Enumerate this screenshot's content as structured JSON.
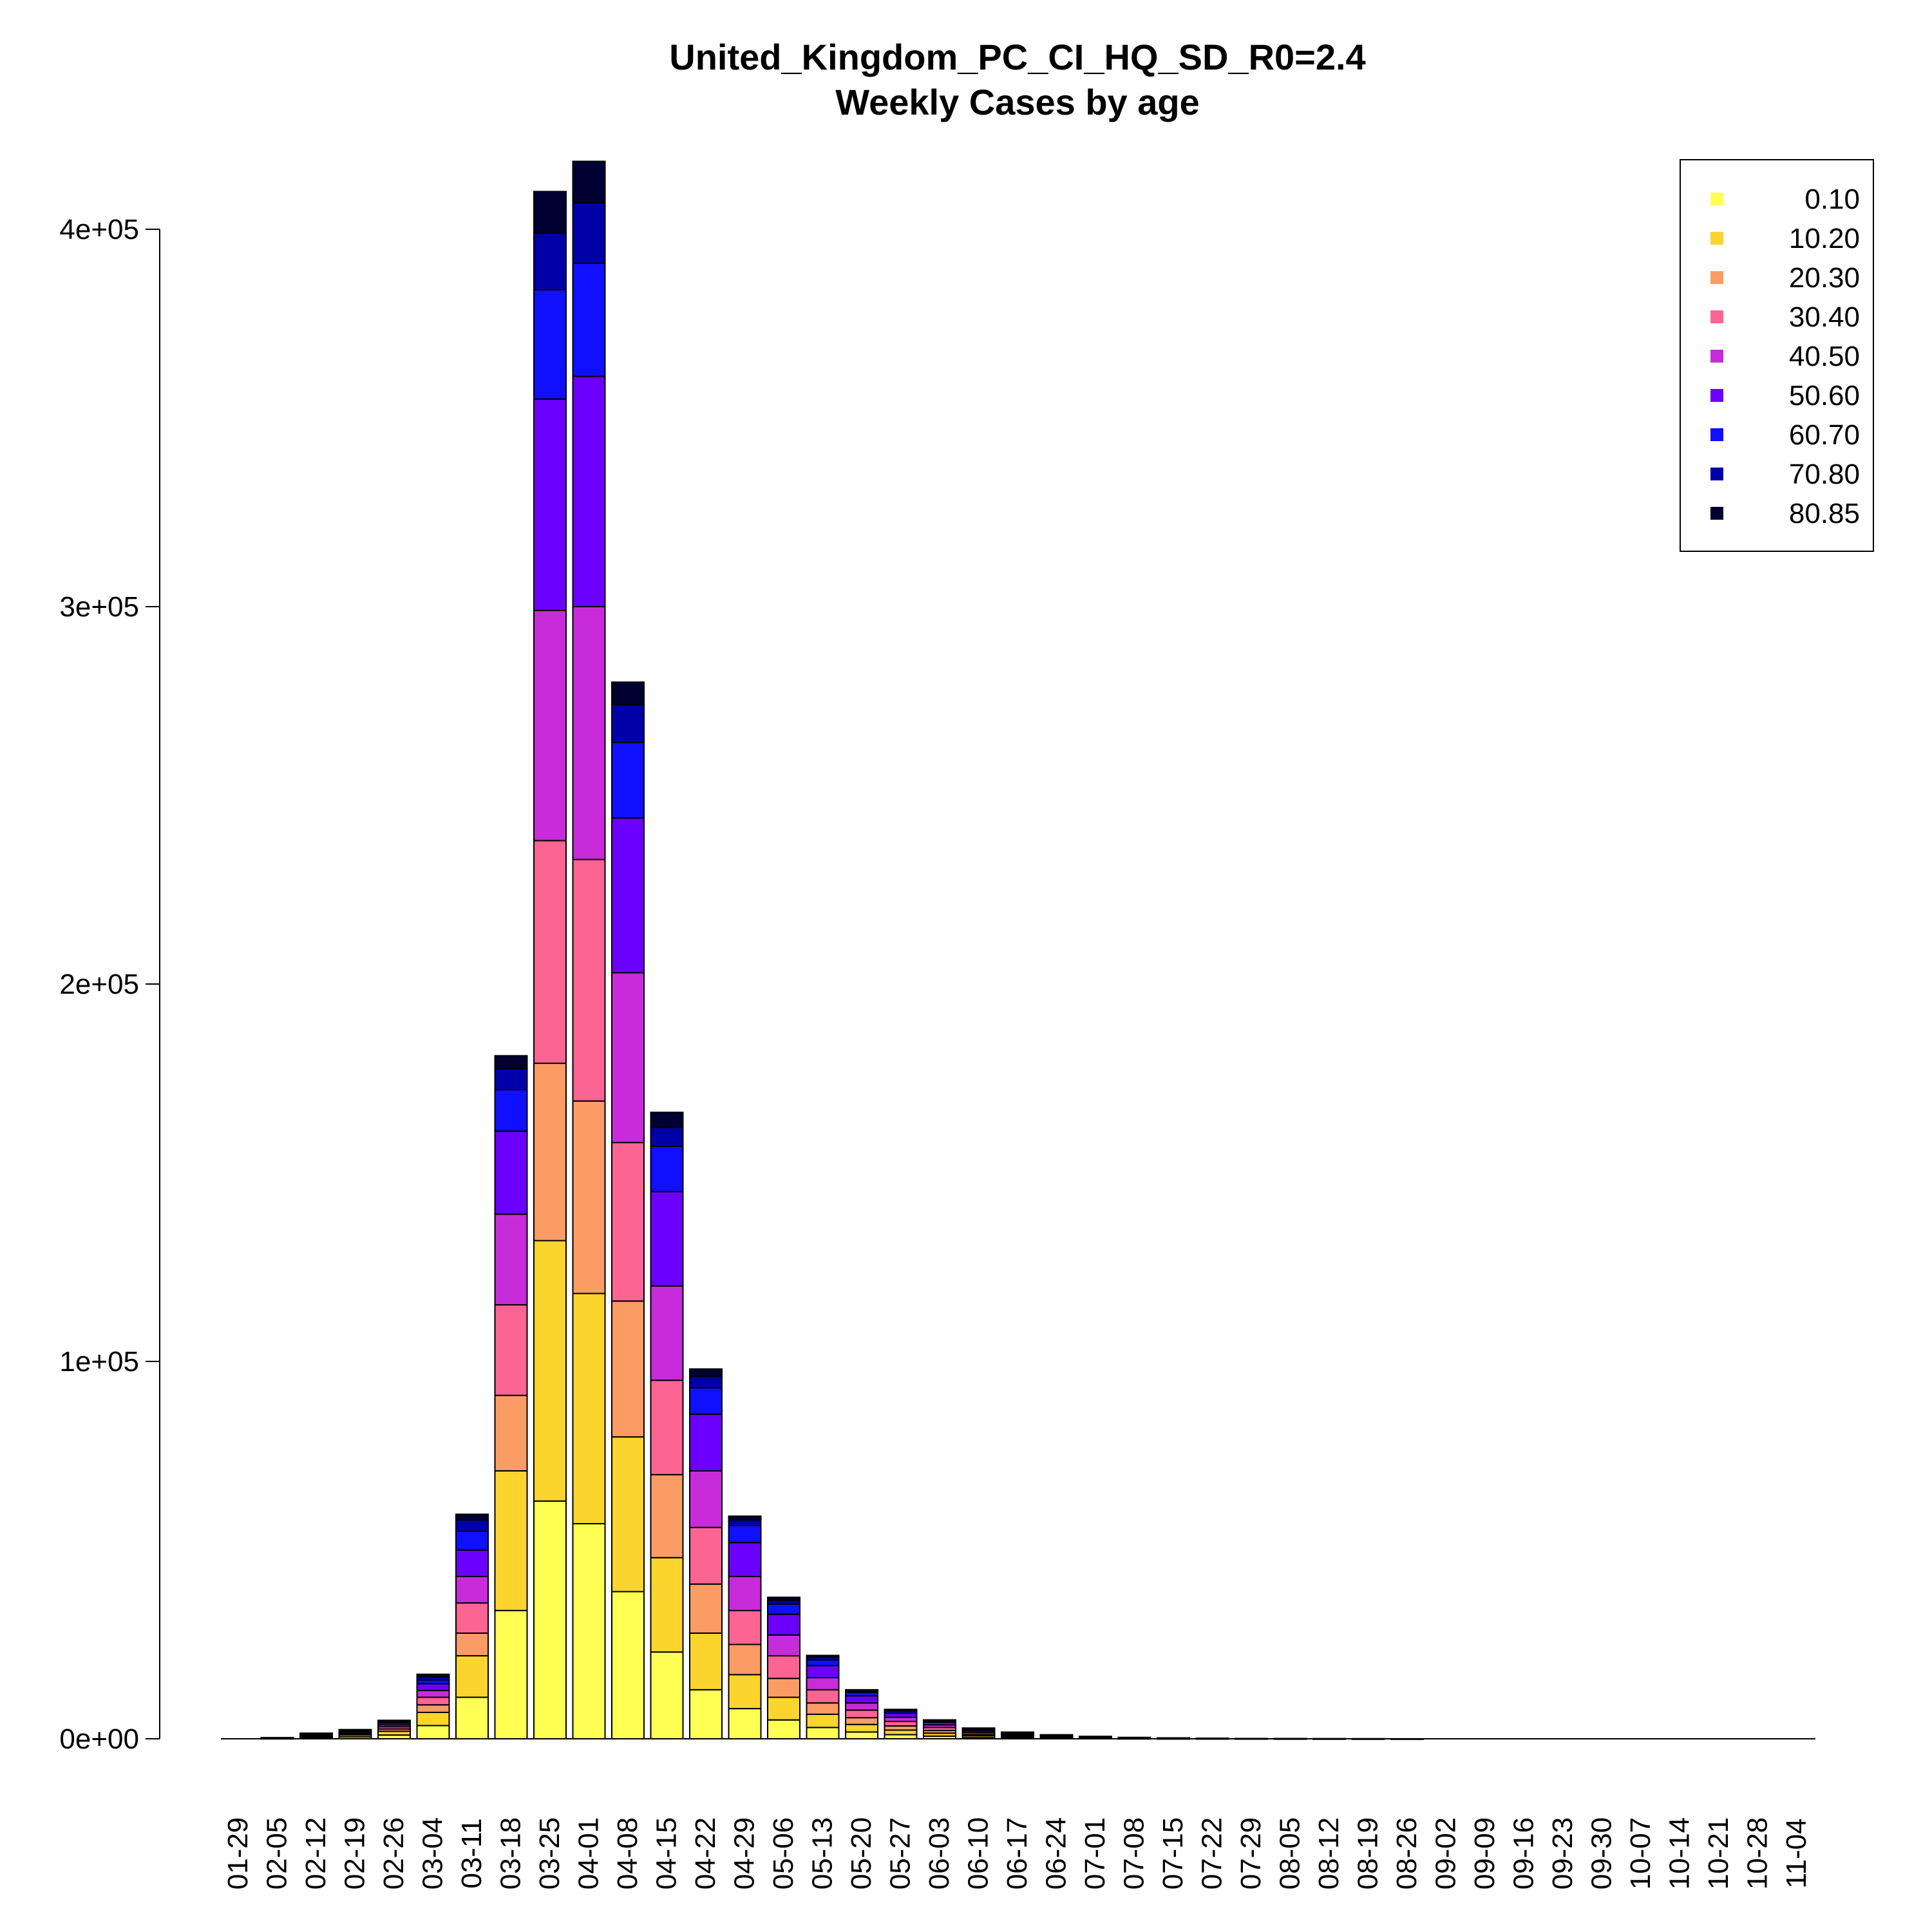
{
  "chart_data": {
    "type": "bar",
    "stacked": true,
    "title": "United_Kingdom_PC_CI_HQ_SD_R0=2.4",
    "subtitle": "Weekly Cases by age",
    "xlabel": "",
    "ylabel": "",
    "ylim": [
      0,
      420000
    ],
    "yticks": [
      0,
      100000,
      200000,
      300000,
      400000
    ],
    "ytick_labels": [
      "0e+00",
      "1e+05",
      "2e+05",
      "3e+05",
      "4e+05"
    ],
    "legend_position": "top-right",
    "grid": false,
    "categories": [
      "01-29",
      "02-05",
      "02-12",
      "02-19",
      "02-26",
      "03-04",
      "03-11",
      "03-18",
      "03-25",
      "04-01",
      "04-08",
      "04-15",
      "04-22",
      "04-29",
      "05-06",
      "05-13",
      "05-20",
      "05-27",
      "06-03",
      "06-10",
      "06-17",
      "06-24",
      "07-01",
      "07-08",
      "07-15",
      "07-22",
      "07-29",
      "08-05",
      "08-12",
      "08-19",
      "08-26",
      "09-02",
      "09-09",
      "09-16",
      "09-23",
      "09-30",
      "10-07",
      "10-14",
      "10-21",
      "10-28",
      "11-04"
    ],
    "series": [
      {
        "name": "0.10",
        "color": "#FFFF54",
        "values": [
          0,
          60,
          300,
          500,
          1000,
          3500,
          11000,
          34000,
          63000,
          57000,
          39000,
          23000,
          13000,
          8000,
          5000,
          3000,
          1800,
          1100,
          700,
          400,
          250,
          150,
          90,
          50,
          30,
          20,
          10,
          5,
          3,
          2,
          1,
          0,
          0,
          0,
          0,
          0,
          0,
          0,
          0,
          0,
          0
        ]
      },
      {
        "name": "10.20",
        "color": "#FCD42E",
        "values": [
          0,
          60,
          300,
          500,
          1000,
          3500,
          11000,
          37000,
          69000,
          61000,
          41000,
          25000,
          15000,
          9000,
          6000,
          3500,
          2000,
          1200,
          800,
          450,
          280,
          170,
          100,
          60,
          35,
          20,
          10,
          5,
          3,
          2,
          1,
          0,
          0,
          0,
          0,
          0,
          0,
          0,
          0,
          0,
          0
        ]
      },
      {
        "name": "20.30",
        "color": "#FA9C64",
        "values": [
          0,
          40,
          200,
          300,
          600,
          2000,
          6000,
          20000,
          47000,
          51000,
          36000,
          22000,
          13000,
          8000,
          5000,
          3000,
          1800,
          1100,
          700,
          400,
          250,
          150,
          90,
          50,
          30,
          20,
          10,
          5,
          3,
          2,
          1,
          0,
          0,
          0,
          0,
          0,
          0,
          0,
          0,
          0,
          0
        ]
      },
      {
        "name": "30.40",
        "color": "#FC6494",
        "values": [
          0,
          40,
          200,
          300,
          600,
          2000,
          8000,
          24000,
          59000,
          64000,
          42000,
          25000,
          15000,
          9000,
          6000,
          3500,
          2000,
          1200,
          800,
          450,
          280,
          170,
          100,
          60,
          35,
          20,
          10,
          5,
          3,
          2,
          1,
          0,
          0,
          0,
          0,
          0,
          0,
          0,
          0,
          0,
          0
        ]
      },
      {
        "name": "40.50",
        "color": "#C82BDA",
        "values": [
          0,
          30,
          150,
          250,
          500,
          1800,
          7000,
          24000,
          61000,
          67000,
          45000,
          25000,
          15000,
          9000,
          5500,
          3200,
          1900,
          1100,
          700,
          400,
          250,
          150,
          90,
          50,
          30,
          20,
          10,
          5,
          3,
          2,
          1,
          0,
          0,
          0,
          0,
          0,
          0,
          0,
          0,
          0,
          0
        ]
      },
      {
        "name": "50.60",
        "color": "#6C00FF",
        "values": [
          0,
          30,
          150,
          250,
          500,
          1800,
          7000,
          22000,
          56000,
          61000,
          41000,
          25000,
          15000,
          9000,
          5500,
          3200,
          1900,
          1100,
          700,
          400,
          250,
          150,
          90,
          50,
          30,
          20,
          10,
          5,
          3,
          2,
          1,
          0,
          0,
          0,
          0,
          0,
          0,
          0,
          0,
          0,
          0
        ]
      },
      {
        "name": "60.70",
        "color": "#1010FF",
        "values": [
          0,
          20,
          100,
          150,
          300,
          1000,
          5000,
          11000,
          29000,
          30000,
          20000,
          12000,
          7000,
          4500,
          2700,
          1500,
          900,
          550,
          350,
          200,
          120,
          70,
          40,
          25,
          15,
          10,
          5,
          3,
          2,
          1,
          0,
          0,
          0,
          0,
          0,
          0,
          0,
          0,
          0,
          0,
          0
        ]
      },
      {
        "name": "70.80",
        "color": "#0000A8",
        "values": [
          0,
          10,
          50,
          100,
          200,
          800,
          3000,
          5500,
          15000,
          16000,
          10000,
          5000,
          3000,
          1500,
          1000,
          700,
          400,
          250,
          150,
          90,
          55,
          35,
          20,
          12,
          7,
          4,
          2,
          1,
          1,
          0,
          0,
          0,
          0,
          0,
          0,
          0,
          0,
          0,
          0,
          0,
          0
        ]
      },
      {
        "name": "80.85",
        "color": "#000033",
        "values": [
          0,
          10,
          50,
          100,
          200,
          700,
          1500,
          3500,
          11000,
          11000,
          6000,
          4000,
          2000,
          1000,
          800,
          500,
          300,
          200,
          120,
          70,
          45,
          25,
          15,
          10,
          5,
          3,
          2,
          1,
          0,
          0,
          0,
          0,
          0,
          0,
          0,
          0,
          0,
          0,
          0,
          0,
          0
        ]
      }
    ]
  }
}
